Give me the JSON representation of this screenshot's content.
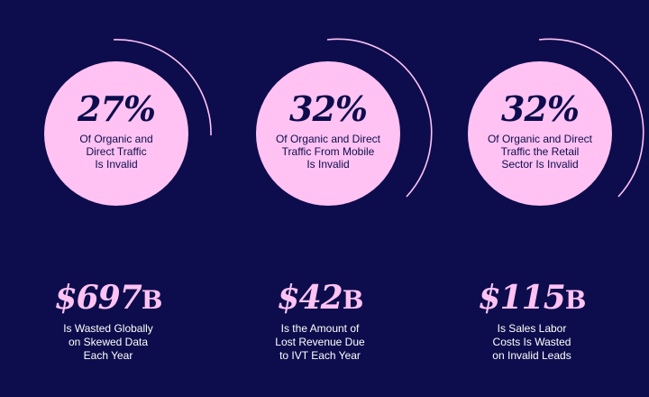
{
  "colors": {
    "background": "#0d0d4d",
    "accent": "#ffc2f3",
    "text_light": "#ffffff"
  },
  "stats": [
    {
      "percent": "27%",
      "circle_lines": [
        "Of Organic and",
        "Direct Traffic",
        "Is Invalid"
      ],
      "big_value": "$697",
      "big_suffix": "B",
      "desc_lines": [
        "Is Wasted Globally",
        "on Skewed Data",
        "Each Year"
      ]
    },
    {
      "percent": "32%",
      "circle_lines": [
        "Of Organic and Direct",
        "Traffic From Mobile",
        "Is Invalid"
      ],
      "big_value": "$42",
      "big_suffix": "B",
      "desc_lines": [
        "Is the Amount of",
        "Lost Revenue Due",
        "to IVT Each Year"
      ]
    },
    {
      "percent": "32%",
      "circle_lines": [
        "Of Organic and Direct",
        "Traffic the Retail",
        "Sector Is Invalid"
      ],
      "big_value": "$115",
      "big_suffix": "B",
      "desc_lines": [
        "Is Sales Labor",
        "Costs Is Wasted",
        "on Invalid Leads"
      ]
    }
  ]
}
